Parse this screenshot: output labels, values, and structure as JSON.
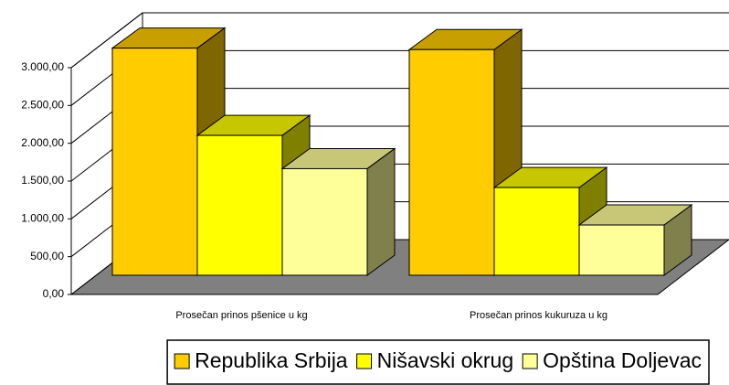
{
  "chart_data": {
    "type": "bar3d",
    "categories": [
      "Prosečan prinos pšenice u kg",
      "Prosečan prinos kukuruza u kg"
    ],
    "series": [
      {
        "name": "Republika Srbija",
        "color": "#ffcc00",
        "values": [
          3005,
          2985
        ]
      },
      {
        "name": "Nišavski okrug",
        "color": "#ffff00",
        "values": [
          1850,
          1160
        ]
      },
      {
        "name": "Opština Doljevac",
        "color": "#ffff99",
        "values": [
          1410,
          665
        ]
      }
    ],
    "ylim": [
      0,
      3000
    ],
    "yticks": [
      {
        "value": 0,
        "label": "0,00"
      },
      {
        "value": 500,
        "label": "500,00"
      },
      {
        "value": 1000,
        "label": "1.000,00"
      },
      {
        "value": 1500,
        "label": "1.500,00"
      },
      {
        "value": 2000,
        "label": "2.000,00"
      },
      {
        "value": 2500,
        "label": "2.500,00"
      },
      {
        "value": 3000,
        "label": "3.000,00"
      }
    ],
    "grid": true
  }
}
